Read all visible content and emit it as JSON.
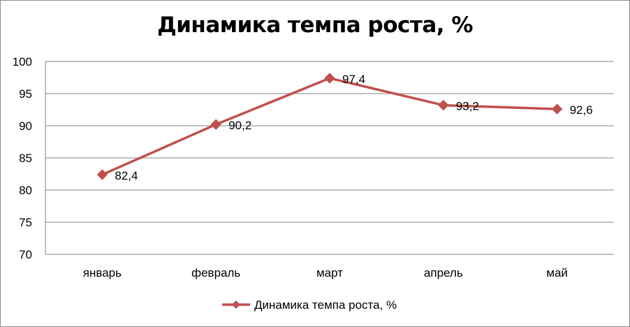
{
  "chart_data": {
    "type": "line",
    "title": "Динамика темпа роста, %",
    "categories": [
      "январь",
      "февраль",
      "март",
      "апрель",
      "май"
    ],
    "series": [
      {
        "name": "Динамика темпа роста, %",
        "values": [
          82.4,
          90.2,
          97.4,
          93.2,
          92.6
        ],
        "labels": [
          "82,4",
          "90,2",
          "97,4",
          "93,2",
          "92,6"
        ],
        "color": "#c0504d",
        "marker": "diamond"
      }
    ],
    "ylim": [
      70,
      100
    ],
    "yticks": [
      70,
      75,
      80,
      85,
      90,
      95,
      100
    ],
    "grid": true,
    "legend": "bottom"
  }
}
